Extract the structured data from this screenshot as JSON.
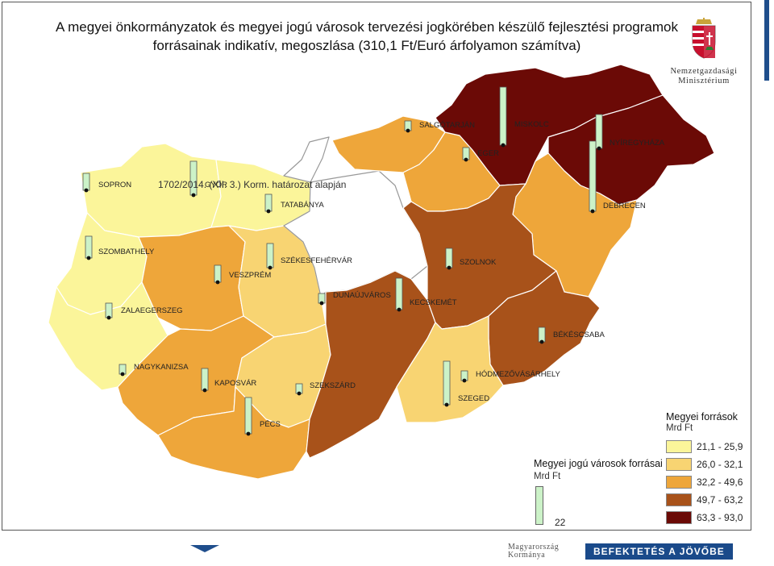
{
  "title": {
    "line1": "A megyei önkormányzatok és megyei jogú városok tervezési jogkörében készülő fejlesztési programok",
    "line2": "forrásainak indikatív, megoszlása (310,1 Ft/Euró árfolyamon számítva)"
  },
  "logo": {
    "line1": "Nemzetgazdasági",
    "line2": "Minisztérium",
    "icon": "hungarian-coat-of-arms-icon"
  },
  "note": "1702/2014. (XII. 3.) Korm. határozat alapján",
  "legend_counties": {
    "title": "Megyei források",
    "unit": "Mrd  Ft",
    "classes": [
      {
        "label": "21,1 - 25,9",
        "color": "#fbf59a"
      },
      {
        "label": "26,0 - 32,1",
        "color": "#f8d472"
      },
      {
        "label": "32,2 - 49,6",
        "color": "#eea63a"
      },
      {
        "label": "49,7 - 63,2",
        "color": "#a8521a"
      },
      {
        "label": "63,3 - 93,0",
        "color": "#6b0a06"
      }
    ]
  },
  "legend_cities": {
    "title": "Megyei jogú városok forrásai",
    "unit": "Mrd  Ft",
    "sample_value": "22"
  },
  "bar_color": "#ccf2c8",
  "cities": [
    {
      "label": "SOPRON",
      "value": 7
    },
    {
      "label": "GYŐR",
      "value": 14
    },
    {
      "label": "TATABÁNYA",
      "value": 7
    },
    {
      "label": "SALGÓTARJÁN",
      "value": 4
    },
    {
      "label": "MISKOLC",
      "value": 24
    },
    {
      "label": "EGER",
      "value": 5
    },
    {
      "label": "NYÍREGYHÁZA",
      "value": 14
    },
    {
      "label": "DEBRECEN",
      "value": 29
    },
    {
      "label": "SZOMBATHELY",
      "value": 9
    },
    {
      "label": "SZÉKESFEHÉRVÁR",
      "value": 10
    },
    {
      "label": "VESZPRÉM",
      "value": 7
    },
    {
      "label": "SZOLNOK",
      "value": 8
    },
    {
      "label": "DUNAÚJVÁROS",
      "value": 4
    },
    {
      "label": "KECSKEMÉT",
      "value": 13
    },
    {
      "label": "ZALAEGERSZEG",
      "value": 6
    },
    {
      "label": "BÉKÉSCSABA",
      "value": 6
    },
    {
      "label": "NAGYKANIZSA",
      "value": 4
    },
    {
      "label": "KAPOSVÁR",
      "value": 9
    },
    {
      "label": "SZEKSZÁRD",
      "value": 4
    },
    {
      "label": "HÓDMEZŐVÁSÁRHELY",
      "value": 4
    },
    {
      "label": "SZEGED",
      "value": 18
    },
    {
      "label": "PÉCS",
      "value": 15
    }
  ],
  "footer": {
    "gov_line1": "Magyarország",
    "gov_line2": "Kormánya",
    "slogan": "BEFEKTETÉS A JÖVŐBE"
  }
}
